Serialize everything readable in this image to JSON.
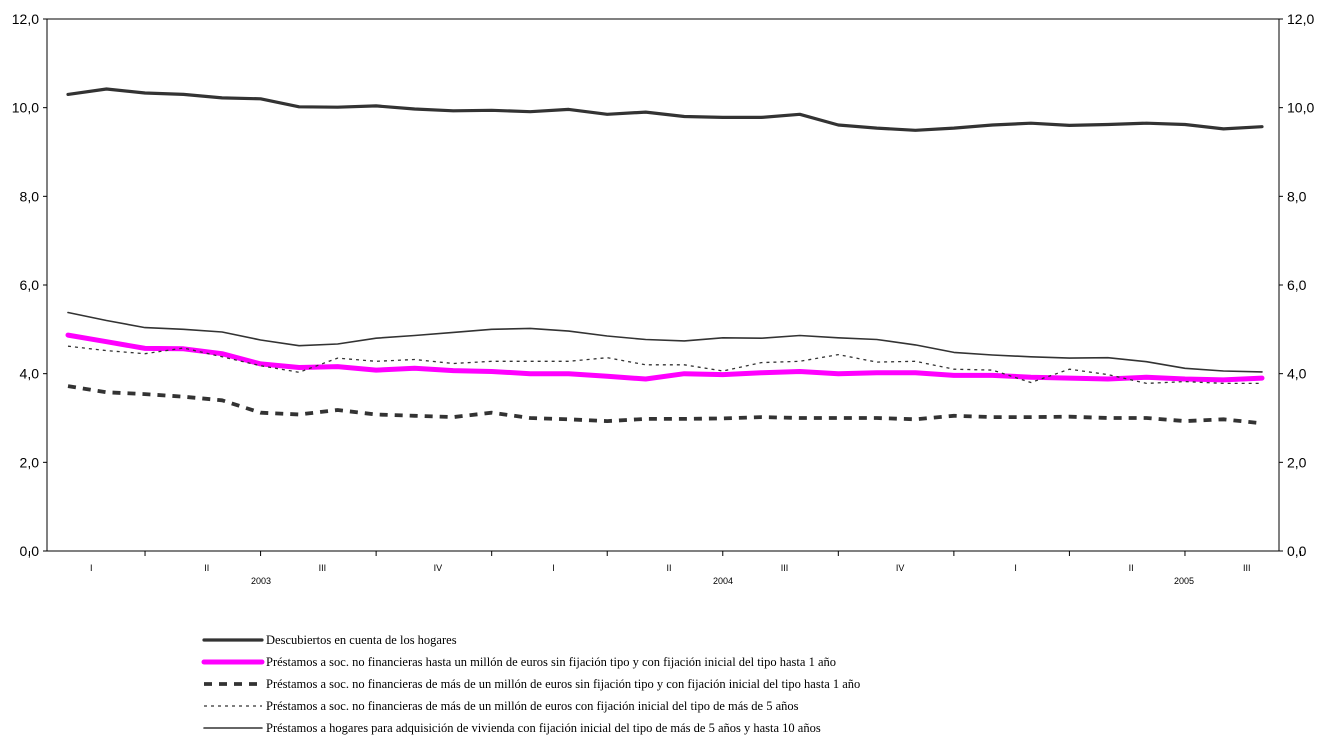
{
  "chart_data": {
    "type": "line",
    "title": "",
    "xlabel": "",
    "ylabel": "",
    "ylim": [
      0,
      12
    ],
    "yticks": [
      "0,0",
      "2,0",
      "4,0",
      "6,0",
      "8,0",
      "10,0",
      "12,0"
    ],
    "y_axis_both_sides": true,
    "grid": false,
    "legend_placement": "bottom-left",
    "x": [
      "2003-01",
      "2003-02",
      "2003-03",
      "2003-04",
      "2003-05",
      "2003-06",
      "2003-07",
      "2003-08",
      "2003-09",
      "2003-10",
      "2003-11",
      "2003-12",
      "2004-01",
      "2004-02",
      "2004-03",
      "2004-04",
      "2004-05",
      "2004-06",
      "2004-07",
      "2004-08",
      "2004-09",
      "2004-10",
      "2004-11",
      "2004-12",
      "2005-01",
      "2005-02",
      "2005-03",
      "2005-04",
      "2005-05",
      "2005-06",
      "2005-07",
      "2005-08"
    ],
    "quarter_labels": [
      "I",
      "II",
      "III",
      "IV",
      "I",
      "II",
      "III",
      "IV",
      "I",
      "II",
      "III"
    ],
    "year_labels": [
      "2003",
      "2004",
      "2005"
    ],
    "series": [
      {
        "name": "Descubiertos en cuenta de los hogares",
        "style": "thick-solid",
        "color": "#333333",
        "values": [
          10.3,
          10.42,
          10.33,
          10.3,
          10.22,
          10.2,
          10.02,
          10.01,
          10.04,
          9.97,
          9.93,
          9.94,
          9.91,
          9.96,
          9.85,
          9.9,
          9.8,
          9.78,
          9.78,
          9.85,
          9.61,
          9.54,
          9.49,
          9.54,
          9.61,
          9.65,
          9.6,
          9.62,
          9.65,
          9.62,
          9.52,
          9.57
        ]
      },
      {
        "name": "Préstamos a soc. no financieras hasta un millón de euros sin fijación tipo y con fijación inicial del tipo hasta 1 año",
        "style": "magenta-thick",
        "color": "#ff00ff",
        "values": [
          4.87,
          4.72,
          4.57,
          4.56,
          4.45,
          4.22,
          4.14,
          4.16,
          4.08,
          4.12,
          4.07,
          4.05,
          4.0,
          4.0,
          3.94,
          3.88,
          4.0,
          3.98,
          4.02,
          4.05,
          4.0,
          4.02,
          4.02,
          3.96,
          3.96,
          3.92,
          3.9,
          3.88,
          3.92,
          3.88,
          3.86,
          3.9
        ]
      },
      {
        "name": "Préstamos a soc. no financieras de más de un millón de euros sin fijación tipo y con fijación inicial del tipo hasta 1 año",
        "style": "thick-dashed",
        "color": "#333333",
        "values": [
          3.72,
          3.58,
          3.54,
          3.48,
          3.4,
          3.12,
          3.08,
          3.18,
          3.08,
          3.05,
          3.02,
          3.12,
          3.0,
          2.97,
          2.93,
          2.98,
          2.98,
          2.99,
          3.02,
          3.0,
          3.0,
          3.0,
          2.97,
          3.05,
          3.02,
          3.02,
          3.03,
          3.0,
          3.0,
          2.93,
          2.97,
          2.88
        ]
      },
      {
        "name": "Préstamos a soc. no financieras de más de un millón de euros con fijación inicial del tipo de más de 5 años",
        "style": "thin-dotted",
        "color": "#333333",
        "values": [
          4.62,
          4.52,
          4.45,
          4.58,
          4.38,
          4.18,
          4.03,
          4.35,
          4.28,
          4.32,
          4.23,
          4.28,
          4.28,
          4.28,
          4.36,
          4.2,
          4.2,
          4.06,
          4.25,
          4.28,
          4.43,
          4.26,
          4.28,
          4.1,
          4.08,
          3.8,
          4.1,
          3.98,
          3.78,
          3.82,
          3.78,
          3.78
        ]
      },
      {
        "name": "Préstamos a hogares para adquisición de vivienda con fijación inicial del tipo de más de 5 años y hasta 10 años",
        "style": "thin-solid",
        "color": "#333333",
        "values": [
          5.38,
          5.2,
          5.04,
          5.0,
          4.94,
          4.76,
          4.63,
          4.67,
          4.8,
          4.86,
          4.93,
          5.0,
          5.02,
          4.96,
          4.85,
          4.77,
          4.74,
          4.81,
          4.8,
          4.86,
          4.81,
          4.77,
          4.65,
          4.48,
          4.42,
          4.38,
          4.35,
          4.36,
          4.27,
          4.12,
          4.06,
          4.04
        ]
      }
    ]
  }
}
